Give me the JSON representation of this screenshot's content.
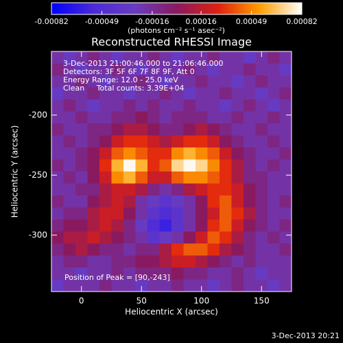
{
  "chart_data": {
    "type": "heatmap",
    "title": "Reconstructed RHESSI Image",
    "xlabel": "Heliocentric X (arcsec)",
    "ylabel": "Heliocentric Y (arcsec)",
    "annotations": [
      "3-Dec-2013 21:00:46.000 to 21:06:46.000",
      "Detectors: 3F 5F 6F 7F 8F 9F, Att 0",
      "Energy Range: 12.0 - 25.0 keV",
      "Clean     Total counts: 3.39E+04"
    ],
    "peak_label": "Position of Peak = [90,-243]",
    "footer": "3-Dec-2013 20:21",
    "xlim": [
      -25,
      175
    ],
    "ylim": [
      -347,
      -147
    ],
    "xticks": [
      0,
      50,
      100,
      150
    ],
    "yticks": [
      -200,
      -250,
      -300
    ],
    "colorbar": {
      "range": [
        -0.00082,
        0.00082
      ],
      "ticks": [
        -0.00082,
        -0.00049,
        -0.00016,
        0.00016,
        0.00049,
        0.00082
      ],
      "label": "(photons cm⁻² s⁻¹ asec⁻²)",
      "colormap": [
        "#0000ff",
        "#4b2ad8",
        "#6a3cc0",
        "#8a1a60",
        "#e02010",
        "#ffa000",
        "#ffffff"
      ]
    },
    "x": [
      -20,
      -10,
      0,
      10,
      20,
      30,
      40,
      50,
      60,
      70,
      80,
      90,
      100,
      110,
      120,
      130,
      140,
      150,
      160,
      170
    ],
    "y": [
      -152,
      -162,
      -172,
      -182,
      -192,
      -202,
      -212,
      -222,
      -232,
      -242,
      -252,
      -262,
      -272,
      -282,
      -292,
      -302,
      -312,
      -322,
      -332,
      -342
    ],
    "z": [
      [
        -0.0002,
        -0.0003,
        -0.0002,
        -0.0001,
        -0.0002,
        -0.0003,
        -0.0002,
        -0.0002,
        -0.0001,
        -0.0002,
        -0.0003,
        -0.0002,
        -0.0002,
        -0.0001,
        -0.0002,
        -0.0002,
        -0.0003,
        -0.0002,
        -0.0001,
        -0.0002
      ],
      [
        -0.0001,
        -0.0002,
        -0.0003,
        -0.0002,
        -0.0002,
        -0.0001,
        -0.0002,
        -0.0003,
        -0.0002,
        -0.0002,
        -0.0002,
        -0.0001,
        -0.0002,
        -0.0003,
        -0.0002,
        -0.0002,
        -0.0001,
        -0.0002,
        -0.0002,
        -0.0003
      ],
      [
        -0.0002,
        -0.0002,
        -0.0001,
        -0.0002,
        -0.0003,
        -0.0002,
        -0.0002,
        -0.0001,
        -0.0002,
        -0.0003,
        -0.0002,
        -0.0002,
        -0.0001,
        -0.0002,
        -0.0002,
        -0.0003,
        -0.0002,
        -0.0001,
        -0.0002,
        -0.0002
      ],
      [
        -0.0003,
        -0.0002,
        -0.0002,
        -0.0001,
        -0.0002,
        -0.0002,
        -0.0003,
        -0.0002,
        -0.0002,
        -0.0001,
        -0.0002,
        -0.0003,
        -0.0002,
        -0.0002,
        -0.0001,
        -0.0002,
        -0.0002,
        -0.0003,
        -0.0002,
        -0.0001
      ],
      [
        -0.0002,
        -0.0001,
        -0.0002,
        -0.0003,
        -0.0002,
        -0.0002,
        -0.0001,
        -0.0002,
        -0.0001,
        -0.0002,
        -0.0002,
        -0.0001,
        -0.0002,
        -0.0002,
        -0.0003,
        -0.0002,
        -0.0001,
        -0.0002,
        -0.0003,
        -0.0002
      ],
      [
        -0.0002,
        -0.0002,
        -0.0001,
        -0.0002,
        -0.0002,
        -0.0001,
        -0.0001,
        0.0,
        -0.0001,
        -0.0002,
        -0.0001,
        -0.0001,
        -0.0001,
        -0.0002,
        -0.0002,
        -0.0001,
        -0.0002,
        -0.0002,
        -0.0001,
        -0.0002
      ],
      [
        -0.0001,
        -0.0002,
        -0.0002,
        -0.0001,
        -0.0001,
        0.0,
        0.0001,
        0.0001,
        0.0,
        -0.0001,
        -0.0001,
        0.0,
        0.0001,
        0.0,
        -0.0001,
        -0.0002,
        -0.0002,
        -0.0001,
        -0.0002,
        -0.0002
      ],
      [
        -0.0002,
        -0.0001,
        -0.0002,
        -0.0001,
        0.0,
        0.0002,
        0.0003,
        0.0003,
        0.0002,
        0.0001,
        0.0002,
        0.0003,
        0.0003,
        0.0002,
        0.0,
        -0.0001,
        -0.0002,
        -0.0002,
        -0.0001,
        -0.0002
      ],
      [
        -0.0002,
        -0.0002,
        -0.0001,
        0.0,
        0.0002,
        0.0004,
        0.0005,
        0.0004,
        0.0003,
        0.0003,
        0.0005,
        0.0006,
        0.0005,
        0.0004,
        0.0002,
        0.0,
        -0.0001,
        -0.0002,
        -0.0002,
        -0.0001
      ],
      [
        -0.0001,
        -0.0002,
        -0.0001,
        0.0,
        0.0003,
        0.0006,
        0.0008,
        0.0006,
        0.0003,
        0.0004,
        0.0007,
        0.0008,
        0.0007,
        0.0005,
        0.0003,
        0.0001,
        -0.0001,
        -0.0002,
        -0.0001,
        -0.0002
      ],
      [
        -0.0002,
        -0.0001,
        -0.0002,
        0.0,
        0.0002,
        0.0005,
        0.0006,
        0.0004,
        0.0002,
        0.0002,
        0.0004,
        0.0005,
        0.0005,
        0.0004,
        0.0003,
        0.0001,
        -0.0001,
        -0.0001,
        -0.0002,
        -0.0002
      ],
      [
        -0.0002,
        -0.0002,
        -0.0001,
        -0.0001,
        0.0001,
        0.0002,
        0.0002,
        0.0001,
        -0.0001,
        -0.0002,
        -0.0001,
        0.0001,
        0.0002,
        0.0003,
        0.0003,
        0.0002,
        0.0,
        -0.0001,
        -0.0002,
        -0.0002
      ],
      [
        -0.0001,
        -0.0002,
        -0.0002,
        0.0,
        0.0001,
        0.0002,
        0.0001,
        -0.0002,
        -0.0003,
        -0.0004,
        -0.0003,
        -0.0002,
        0.0,
        0.0003,
        0.0004,
        0.0002,
        0.0,
        -0.0001,
        -0.0002,
        -0.0001
      ],
      [
        -0.0002,
        -0.0001,
        -0.0001,
        0.0001,
        0.0002,
        0.0002,
        0.0,
        -0.0002,
        -0.0004,
        -0.0005,
        -0.0004,
        -0.0002,
        0.0,
        0.0002,
        0.0004,
        0.0003,
        0.0001,
        -0.0001,
        -0.0002,
        -0.0002
      ],
      [
        -0.0001,
        0.0,
        0.0,
        0.0001,
        0.0002,
        0.0001,
        -0.0001,
        -0.0003,
        -0.0005,
        -0.0006,
        -0.0004,
        -0.0002,
        0.0,
        0.0003,
        0.0004,
        0.0002,
        0.0,
        -0.0001,
        -0.0002,
        -0.0001
      ],
      [
        0.0,
        0.0001,
        0.0001,
        0.0002,
        0.0001,
        0.0,
        -0.0001,
        -0.0002,
        -0.0004,
        -0.0003,
        -0.0002,
        0.0,
        0.0002,
        0.0004,
        0.0003,
        0.0001,
        -0.0001,
        -0.0002,
        -0.0001,
        -0.0002
      ],
      [
        -0.0001,
        0.0,
        0.0001,
        0.0,
        -0.0001,
        -0.0001,
        -0.0002,
        -0.0001,
        -0.0001,
        0.0001,
        0.0003,
        0.0004,
        0.0004,
        0.0003,
        0.0001,
        0.0,
        -0.0001,
        -0.0002,
        -0.0002,
        -0.0001
      ],
      [
        -0.0002,
        -0.0001,
        -0.0001,
        -0.0002,
        -0.0002,
        -0.0001,
        -0.0001,
        0.0,
        0.0,
        0.0001,
        0.0002,
        0.0002,
        0.0001,
        0.0,
        -0.0001,
        -0.0002,
        -0.0001,
        -0.0002,
        -0.0002,
        -0.0002
      ],
      [
        -0.0002,
        -0.0002,
        -0.0003,
        -0.0002,
        -0.0002,
        -0.0001,
        -0.0002,
        -0.0001,
        -0.0001,
        -0.0001,
        0.0,
        -0.0001,
        -0.0001,
        -0.0002,
        -0.0002,
        -0.0001,
        -0.0002,
        -0.0003,
        -0.0002,
        -0.0002
      ],
      [
        -0.0003,
        -0.0002,
        -0.0002,
        -0.0002,
        -0.0001,
        -0.0002,
        -0.0002,
        -0.0003,
        -0.0002,
        -0.0002,
        -0.0001,
        -0.0002,
        -0.0002,
        -0.0003,
        -0.0002,
        -0.0001,
        -0.0002,
        -0.0002,
        -0.0003,
        -0.0002
      ]
    ]
  }
}
